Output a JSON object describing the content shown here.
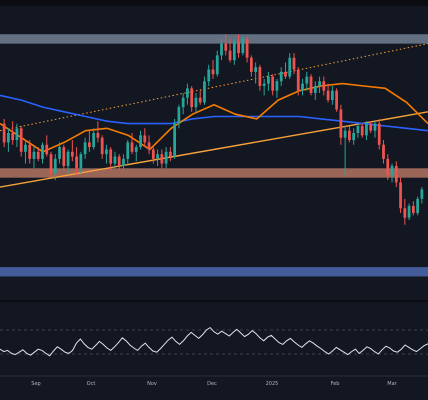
{
  "colors": {
    "background": "#131722",
    "separator": "#0b0d13",
    "bull": "#26a69a",
    "bear": "#ef5350",
    "zone_resistance": "#6b7a8c",
    "zone_mid": "#a86f5e",
    "zone_support": "#4b64a8",
    "ma_blue": "#2962ff",
    "ma_orange": "#f57c00",
    "trend_orange": "#f7a23b",
    "osc_line": "#e0e3eb",
    "axis_text": "#b2b5be",
    "grid": "#1e222d"
  },
  "chart_data": [
    {
      "type": "candlestick",
      "title": "",
      "x_ticks": [
        "Sep",
        "Oct",
        "Nov",
        "Dec",
        "2025",
        "Feb",
        "Mar"
      ],
      "ylim": [
        0,
        100
      ],
      "zones": [
        {
          "name": "resistance-zone",
          "y_top": 88,
          "y_bottom": 84
        },
        {
          "name": "mid-zone",
          "y_top": 31,
          "y_bottom": 27
        },
        {
          "name": "support-zone",
          "y_top": -11,
          "y_bottom": -15
        }
      ],
      "trendlines": [
        {
          "name": "upper-dotted-trendline",
          "style": "dotted",
          "from": [
            0,
            47
          ],
          "to": [
            100,
            84
          ]
        },
        {
          "name": "lower-trendline",
          "style": "solid",
          "from": [
            0,
            23
          ],
          "to": [
            100,
            55
          ]
        }
      ],
      "ma_blue": [
        [
          0,
          62
        ],
        [
          5,
          60
        ],
        [
          10,
          57
        ],
        [
          15,
          55
        ],
        [
          20,
          53
        ],
        [
          25,
          51
        ],
        [
          30,
          50
        ],
        [
          35,
          50
        ],
        [
          40,
          50
        ],
        [
          45,
          52
        ],
        [
          50,
          53
        ],
        [
          55,
          53
        ],
        [
          60,
          53
        ],
        [
          65,
          53
        ],
        [
          70,
          53
        ],
        [
          75,
          52
        ],
        [
          80,
          51
        ],
        [
          85,
          50
        ],
        [
          90,
          49
        ],
        [
          95,
          48
        ],
        [
          100,
          47
        ]
      ],
      "ma_orange": [
        [
          0,
          50
        ],
        [
          5,
          44
        ],
        [
          10,
          38
        ],
        [
          15,
          42
        ],
        [
          20,
          47
        ],
        [
          25,
          48
        ],
        [
          30,
          45
        ],
        [
          35,
          39
        ],
        [
          40,
          48
        ],
        [
          45,
          54
        ],
        [
          50,
          58
        ],
        [
          55,
          54
        ],
        [
          60,
          52
        ],
        [
          65,
          60
        ],
        [
          70,
          64
        ],
        [
          75,
          66
        ],
        [
          80,
          67
        ],
        [
          85,
          66
        ],
        [
          90,
          65
        ],
        [
          95,
          59
        ],
        [
          100,
          50
        ]
      ],
      "candles": [
        {
          "o": 50,
          "h": 52,
          "l": 40,
          "c": 42
        },
        {
          "o": 42,
          "h": 48,
          "l": 38,
          "c": 46
        },
        {
          "o": 46,
          "h": 51,
          "l": 41,
          "c": 43
        },
        {
          "o": 43,
          "h": 50,
          "l": 40,
          "c": 48
        },
        {
          "o": 48,
          "h": 49,
          "l": 36,
          "c": 38
        },
        {
          "o": 38,
          "h": 43,
          "l": 33,
          "c": 41
        },
        {
          "o": 41,
          "h": 43,
          "l": 33,
          "c": 35
        },
        {
          "o": 35,
          "h": 40,
          "l": 31,
          "c": 38
        },
        {
          "o": 38,
          "h": 40,
          "l": 34,
          "c": 35
        },
        {
          "o": 35,
          "h": 42,
          "l": 33,
          "c": 41
        },
        {
          "o": 41,
          "h": 45,
          "l": 36,
          "c": 37
        },
        {
          "o": 37,
          "h": 38,
          "l": 27,
          "c": 29
        },
        {
          "o": 29,
          "h": 37,
          "l": 26,
          "c": 35
        },
        {
          "o": 35,
          "h": 42,
          "l": 33,
          "c": 40
        },
        {
          "o": 40,
          "h": 41,
          "l": 30,
          "c": 32
        },
        {
          "o": 32,
          "h": 39,
          "l": 29,
          "c": 38
        },
        {
          "o": 38,
          "h": 43,
          "l": 34,
          "c": 36
        },
        {
          "o": 36,
          "h": 40,
          "l": 28,
          "c": 31
        },
        {
          "o": 31,
          "h": 38,
          "l": 29,
          "c": 37
        },
        {
          "o": 37,
          "h": 44,
          "l": 35,
          "c": 42
        },
        {
          "o": 42,
          "h": 47,
          "l": 38,
          "c": 40
        },
        {
          "o": 40,
          "h": 48,
          "l": 39,
          "c": 46
        },
        {
          "o": 46,
          "h": 51,
          "l": 42,
          "c": 44
        },
        {
          "o": 44,
          "h": 45,
          "l": 35,
          "c": 37
        },
        {
          "o": 37,
          "h": 41,
          "l": 33,
          "c": 39
        },
        {
          "o": 39,
          "h": 40,
          "l": 30,
          "c": 33
        },
        {
          "o": 33,
          "h": 38,
          "l": 31,
          "c": 36
        },
        {
          "o": 36,
          "h": 37,
          "l": 30,
          "c": 32
        },
        {
          "o": 32,
          "h": 37,
          "l": 30,
          "c": 35
        },
        {
          "o": 35,
          "h": 43,
          "l": 33,
          "c": 42
        },
        {
          "o": 42,
          "h": 46,
          "l": 37,
          "c": 38
        },
        {
          "o": 38,
          "h": 41,
          "l": 34,
          "c": 40
        },
        {
          "o": 40,
          "h": 47,
          "l": 39,
          "c": 45
        },
        {
          "o": 45,
          "h": 48,
          "l": 40,
          "c": 42
        },
        {
          "o": 42,
          "h": 45,
          "l": 37,
          "c": 39
        },
        {
          "o": 39,
          "h": 40,
          "l": 33,
          "c": 35
        },
        {
          "o": 35,
          "h": 39,
          "l": 32,
          "c": 37
        },
        {
          "o": 37,
          "h": 39,
          "l": 31,
          "c": 33
        },
        {
          "o": 33,
          "h": 40,
          "l": 31,
          "c": 38
        },
        {
          "o": 38,
          "h": 40,
          "l": 34,
          "c": 36
        },
        {
          "o": 36,
          "h": 52,
          "l": 35,
          "c": 50
        },
        {
          "o": 50,
          "h": 58,
          "l": 48,
          "c": 57
        },
        {
          "o": 57,
          "h": 63,
          "l": 54,
          "c": 61
        },
        {
          "o": 61,
          "h": 67,
          "l": 58,
          "c": 65
        },
        {
          "o": 65,
          "h": 66,
          "l": 55,
          "c": 57
        },
        {
          "o": 57,
          "h": 63,
          "l": 55,
          "c": 61
        },
        {
          "o": 61,
          "h": 64,
          "l": 58,
          "c": 59
        },
        {
          "o": 59,
          "h": 70,
          "l": 58,
          "c": 68
        },
        {
          "o": 68,
          "h": 75,
          "l": 66,
          "c": 73
        },
        {
          "o": 73,
          "h": 77,
          "l": 69,
          "c": 71
        },
        {
          "o": 71,
          "h": 81,
          "l": 70,
          "c": 79
        },
        {
          "o": 79,
          "h": 86,
          "l": 77,
          "c": 84
        },
        {
          "o": 84,
          "h": 88,
          "l": 79,
          "c": 81
        },
        {
          "o": 81,
          "h": 86,
          "l": 76,
          "c": 77
        },
        {
          "o": 77,
          "h": 86,
          "l": 75,
          "c": 85
        },
        {
          "o": 85,
          "h": 88,
          "l": 78,
          "c": 80
        },
        {
          "o": 80,
          "h": 87,
          "l": 79,
          "c": 86
        },
        {
          "o": 86,
          "h": 87,
          "l": 76,
          "c": 78
        },
        {
          "o": 78,
          "h": 79,
          "l": 70,
          "c": 72
        },
        {
          "o": 72,
          "h": 76,
          "l": 67,
          "c": 74
        },
        {
          "o": 74,
          "h": 75,
          "l": 64,
          "c": 66
        },
        {
          "o": 66,
          "h": 69,
          "l": 62,
          "c": 67
        },
        {
          "o": 67,
          "h": 72,
          "l": 64,
          "c": 70
        },
        {
          "o": 70,
          "h": 71,
          "l": 62,
          "c": 64
        },
        {
          "o": 64,
          "h": 69,
          "l": 61,
          "c": 68
        },
        {
          "o": 68,
          "h": 74,
          "l": 66,
          "c": 72
        },
        {
          "o": 72,
          "h": 76,
          "l": 69,
          "c": 70
        },
        {
          "o": 70,
          "h": 80,
          "l": 69,
          "c": 78
        },
        {
          "o": 78,
          "h": 80,
          "l": 71,
          "c": 73
        },
        {
          "o": 73,
          "h": 74,
          "l": 62,
          "c": 64
        },
        {
          "o": 64,
          "h": 69,
          "l": 62,
          "c": 67
        },
        {
          "o": 67,
          "h": 72,
          "l": 64,
          "c": 70
        },
        {
          "o": 70,
          "h": 71,
          "l": 62,
          "c": 63
        },
        {
          "o": 63,
          "h": 68,
          "l": 60,
          "c": 66
        },
        {
          "o": 66,
          "h": 70,
          "l": 63,
          "c": 68
        },
        {
          "o": 68,
          "h": 70,
          "l": 62,
          "c": 64
        },
        {
          "o": 64,
          "h": 67,
          "l": 59,
          "c": 60
        },
        {
          "o": 60,
          "h": 66,
          "l": 58,
          "c": 64
        },
        {
          "o": 64,
          "h": 65,
          "l": 55,
          "c": 56
        },
        {
          "o": 56,
          "h": 58,
          "l": 41,
          "c": 44
        },
        {
          "o": 44,
          "h": 49,
          "l": 28,
          "c": 47
        },
        {
          "o": 47,
          "h": 49,
          "l": 42,
          "c": 43
        },
        {
          "o": 43,
          "h": 48,
          "l": 41,
          "c": 46
        },
        {
          "o": 46,
          "h": 50,
          "l": 44,
          "c": 49
        },
        {
          "o": 49,
          "h": 50,
          "l": 44,
          "c": 45
        },
        {
          "o": 45,
          "h": 51,
          "l": 43,
          "c": 50
        },
        {
          "o": 50,
          "h": 51,
          "l": 46,
          "c": 47
        },
        {
          "o": 47,
          "h": 51,
          "l": 44,
          "c": 50
        },
        {
          "o": 50,
          "h": 52,
          "l": 39,
          "c": 41
        },
        {
          "o": 41,
          "h": 43,
          "l": 33,
          "c": 35
        },
        {
          "o": 35,
          "h": 37,
          "l": 26,
          "c": 28
        },
        {
          "o": 28,
          "h": 33,
          "l": 25,
          "c": 32
        },
        {
          "o": 32,
          "h": 34,
          "l": 23,
          "c": 25
        },
        {
          "o": 25,
          "h": 27,
          "l": 12,
          "c": 14
        },
        {
          "o": 14,
          "h": 18,
          "l": 7,
          "c": 10
        },
        {
          "o": 10,
          "h": 16,
          "l": 9,
          "c": 15
        },
        {
          "o": 15,
          "h": 17,
          "l": 11,
          "c": 12
        },
        {
          "o": 12,
          "h": 19,
          "l": 11,
          "c": 18
        },
        {
          "o": 18,
          "h": 23,
          "l": 16,
          "c": 22
        }
      ]
    },
    {
      "type": "line",
      "title": "",
      "ylim": [
        0,
        100
      ],
      "levels": [
        70,
        30
      ],
      "series": [
        {
          "values": [
            38,
            34,
            36,
            31,
            29,
            33,
            37,
            31,
            28,
            33,
            38,
            36,
            31,
            27,
            35,
            42,
            38,
            33,
            31,
            36,
            48,
            55,
            47,
            41,
            38,
            44,
            51,
            46,
            40,
            36,
            42,
            49,
            57,
            52,
            45,
            40,
            36,
            43,
            48,
            41,
            35,
            33,
            39,
            46,
            53,
            58,
            51,
            46,
            52,
            60,
            66,
            61,
            56,
            62,
            70,
            74,
            67,
            63,
            68,
            64,
            60,
            66,
            71,
            65,
            59,
            63,
            69,
            64,
            57,
            52,
            58,
            61,
            55,
            49,
            46,
            52,
            56,
            50,
            45,
            41,
            47,
            52,
            48,
            43,
            39,
            34,
            30,
            35,
            41,
            37,
            33,
            29,
            34,
            38,
            31,
            36,
            42,
            39,
            34,
            30,
            37,
            43,
            40,
            35,
            33,
            38,
            45,
            41,
            37,
            34,
            39,
            44,
            47
          ]
        }
      ]
    }
  ]
}
